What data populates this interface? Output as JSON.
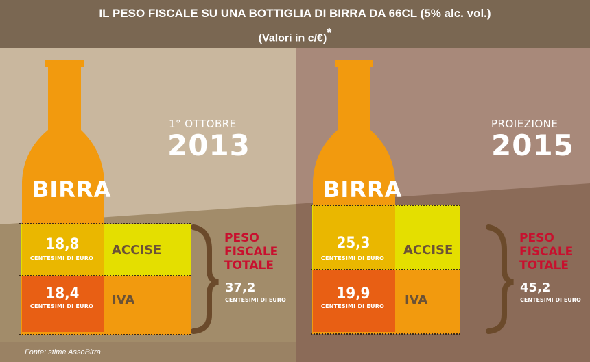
{
  "title": "IL PESO FISCALE SU UNA BOTTIGLIA DI BIRRA DA 66CL (5% alc. vol.)",
  "subtitle": "(Valori in c/€)",
  "subtitle_mark": "*",
  "source": "Fonte: stime AssoBirra",
  "colors": {
    "header": "#7a6752",
    "left_bg": "#c9b79e",
    "right_bg": "#a8897a",
    "bottle": "#f29a0e",
    "accise": "#e4df00",
    "iva": "#f29a0e",
    "bracket": "#6b4a2b",
    "peso_text": "#c8102e"
  },
  "chart_data": [
    {
      "type": "bar",
      "stacked": true,
      "year_label": "1° OTTOBRE",
      "year": "2013",
      "bottle_label": "BIRRA",
      "unit_label": "CENTESIMI DI EURO",
      "series": [
        {
          "name": "ACCISE",
          "value": 18.8,
          "value_label": "18,8"
        },
        {
          "name": "IVA",
          "value": 18.4,
          "value_label": "18,4"
        }
      ],
      "total_title": [
        "PESO",
        "FISCALE",
        "TOTALE"
      ],
      "total": 37.2,
      "total_label": "37,2",
      "total_unit": "CENTESIMI DI EURO"
    },
    {
      "type": "bar",
      "stacked": true,
      "year_label": "PROIEZIONE",
      "year": "2015",
      "bottle_label": "BIRRA",
      "unit_label": "CENTESIMI DI EURO",
      "series": [
        {
          "name": "ACCISE",
          "value": 25.3,
          "value_label": "25,3"
        },
        {
          "name": "IVA",
          "value": 19.9,
          "value_label": "19,9"
        }
      ],
      "total_title": [
        "PESO",
        "FISCALE",
        "TOTALE"
      ],
      "total": 45.2,
      "total_label": "45,2",
      "total_unit": "CENTESIMI DI EURO"
    }
  ]
}
